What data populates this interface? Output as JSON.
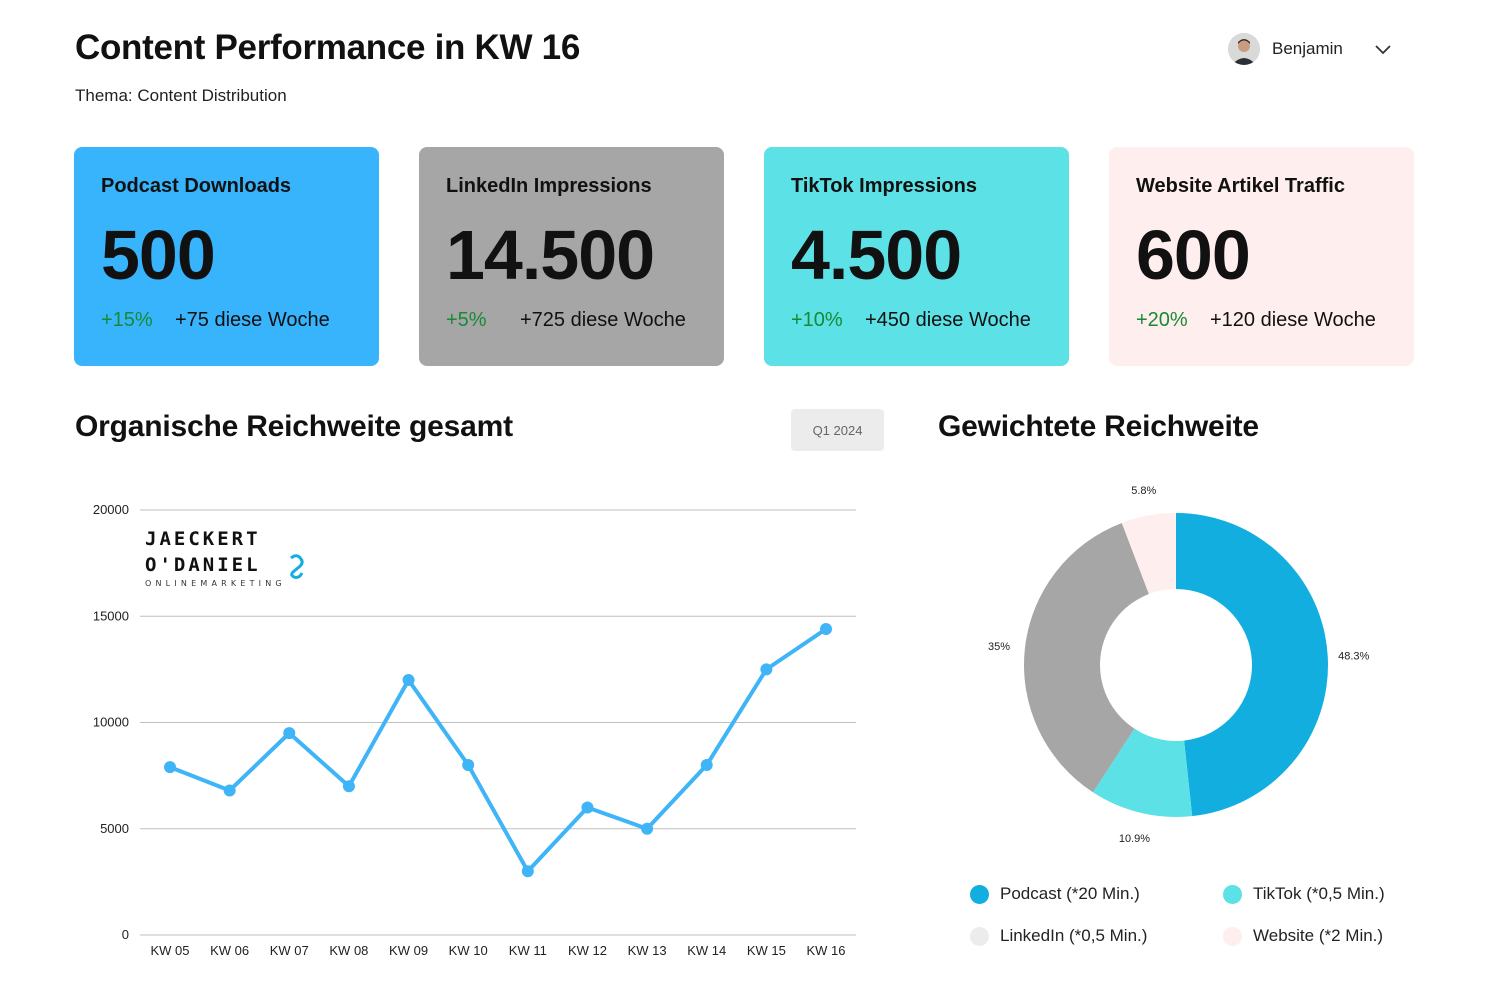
{
  "header": {
    "title": "Content Performance in KW 16",
    "subtitle": "Thema: Content Distribution",
    "user_name": "Benjamin"
  },
  "kpis": [
    {
      "label": "Podcast Downloads",
      "value": "500",
      "change_pct": "+15%",
      "change_abs": "+75 diese Woche",
      "bg": "#38b4fc"
    },
    {
      "label": "LinkedIn Impressions",
      "value": "14.500",
      "change_pct": "+5%",
      "change_abs": "+725 diese Woche",
      "bg": "#a6a6a6"
    },
    {
      "label": "TikTok Impressions",
      "value": "4.500",
      "change_pct": "+10%",
      "change_abs": "+450 diese Woche",
      "bg": "#5ce1e6"
    },
    {
      "label": "Website Artikel Traffic",
      "value": "600",
      "change_pct": "+20%",
      "change_abs": "+120 diese Woche",
      "bg": "#ffeeee"
    }
  ],
  "reach_section": {
    "title": "Organische Reichweite gesamt",
    "period": "Q1 2024",
    "logo": {
      "line1": "JAECKERT",
      "line2": "O'DANIEL",
      "line3": "ONLINEMARKETING"
    }
  },
  "weighted_section": {
    "title": "Gewichtete Reichweite"
  },
  "colors": {
    "line": "#3fb4f7",
    "grid": "#bfbfbf",
    "positive": "#178a34"
  },
  "chart_data": [
    {
      "type": "line",
      "title": "Organische Reichweite gesamt",
      "categories": [
        "KW 05",
        "KW 06",
        "KW 07",
        "KW 08",
        "KW 09",
        "KW 10",
        "KW 11",
        "KW 12",
        "KW 13",
        "KW 14",
        "KW 15",
        "KW 16"
      ],
      "series": [
        {
          "values": [
            7900,
            6800,
            9500,
            7000,
            12000,
            8000,
            3000,
            6000,
            5000,
            8000,
            12500,
            14400
          ]
        }
      ],
      "ylim": [
        0,
        20000
      ],
      "yticks": [
        0,
        5000,
        10000,
        15000,
        20000
      ],
      "grid": true,
      "legend": "none"
    },
    {
      "type": "pie",
      "title": "Gewichtete Reichweite",
      "labels": [
        "Podcast (*20 Min.)",
        "TikTok (*0,5 Min.)",
        "LinkedIn (*0,5 Min.)",
        "Website (*2 Min.)"
      ],
      "values": [
        48.3,
        10.9,
        35,
        5.8
      ],
      "value_labels": [
        "48.3%",
        "10.9%",
        "35%",
        "5.8%"
      ],
      "colors": [
        "#12aee0",
        "#5ce1e6",
        "#a6a6a6",
        "#ffeeee"
      ],
      "legend_colors": [
        "#12aee0",
        "#5ce1e6",
        "#ececec",
        "#ffeeee"
      ],
      "donut": true,
      "legend": "bottom"
    }
  ]
}
